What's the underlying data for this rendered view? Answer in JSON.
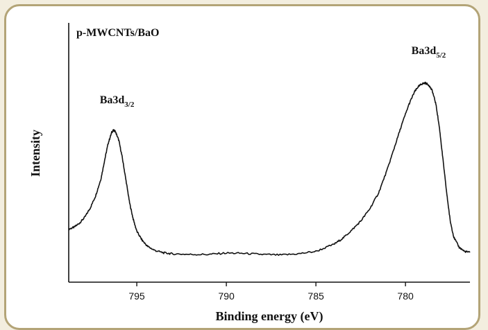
{
  "chart_data": {
    "type": "line",
    "title": "p-MWCNTs/BaO",
    "xlabel": "Binding energy (eV)",
    "ylabel": "Intensity",
    "xlim": [
      798.8,
      776.4
    ],
    "x_reversed": true,
    "y_ticks_shown": false,
    "grid": false,
    "x_ticks": [
      795,
      790,
      785,
      780
    ],
    "peaks": [
      {
        "label_main": "Ba3d",
        "label_sub": "3/2",
        "x": 796.3
      },
      {
        "label_main": "Ba3d",
        "label_sub": "5/2",
        "x": 778.9
      }
    ],
    "series": [
      {
        "x": [
          798.8,
          798.5,
          798.2,
          797.9,
          797.6,
          797.3,
          797.0,
          796.8,
          796.6,
          796.4,
          796.3,
          796.2,
          796.0,
          795.8,
          795.6,
          795.4,
          795.2,
          795.0,
          794.7,
          794.4,
          794.0,
          793.5,
          793.0,
          792.0,
          791.0,
          790.0,
          789.0,
          788.0,
          787.0,
          786.0,
          785.0,
          784.0,
          783.5,
          783.0,
          782.5,
          782.0,
          781.5,
          781.0,
          780.6,
          780.2,
          779.8,
          779.5,
          779.3,
          779.1,
          778.9,
          778.7,
          778.5,
          778.3,
          778.1,
          777.9,
          777.7,
          777.5,
          777.3,
          777.0,
          776.7,
          776.4
        ],
        "y": [
          18.0,
          19.0,
          21.0,
          24.0,
          28.5,
          34.5,
          43.0,
          52.0,
          60.5,
          66.0,
          67.0,
          66.5,
          62.0,
          53.0,
          42.0,
          31.0,
          23.0,
          17.0,
          12.5,
          9.5,
          7.5,
          6.3,
          5.8,
          5.5,
          5.5,
          6.2,
          6.0,
          5.5,
          5.2,
          5.8,
          7.0,
          10.5,
          13.5,
          17.5,
          22.0,
          28.0,
          36.0,
          48.0,
          59.0,
          70.0,
          80.0,
          86.0,
          88.5,
          90.0,
          90.5,
          89.5,
          86.5,
          80.0,
          68.0,
          52.0,
          36.0,
          22.0,
          14.0,
          9.0,
          7.0,
          6.5
        ]
      }
    ]
  }
}
